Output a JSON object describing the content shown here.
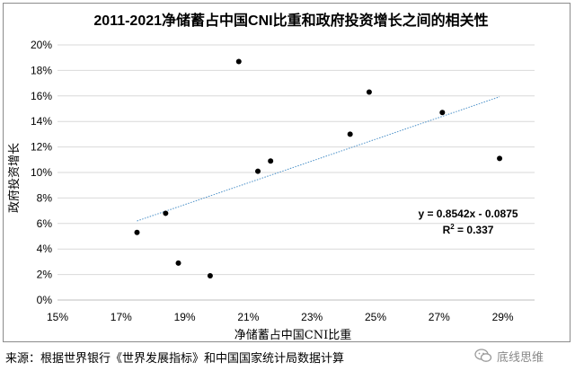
{
  "chart_data": {
    "type": "scatter",
    "title": "2011-2021净储蓄占中国CNI比重和政府投资增长之间的相关性",
    "xlabel": "净储蓄占中国CNI比重",
    "ylabel": "政府投资增长",
    "xlim": [
      0.15,
      0.3
    ],
    "ylim": [
      0,
      0.2
    ],
    "x_ticks": [
      "15%",
      "17%",
      "19%",
      "21%",
      "23%",
      "25%",
      "27%",
      "29%"
    ],
    "y_ticks": [
      "0%",
      "2%",
      "4%",
      "6%",
      "8%",
      "10%",
      "12%",
      "14%",
      "16%",
      "18%",
      "20%"
    ],
    "points": [
      {
        "x": 0.175,
        "y": 0.053
      },
      {
        "x": 0.184,
        "y": 0.068
      },
      {
        "x": 0.188,
        "y": 0.029
      },
      {
        "x": 0.198,
        "y": 0.019
      },
      {
        "x": 0.207,
        "y": 0.187
      },
      {
        "x": 0.213,
        "y": 0.101
      },
      {
        "x": 0.217,
        "y": 0.109
      },
      {
        "x": 0.242,
        "y": 0.13
      },
      {
        "x": 0.248,
        "y": 0.163
      },
      {
        "x": 0.271,
        "y": 0.147
      },
      {
        "x": 0.289,
        "y": 0.111
      }
    ],
    "trendline": {
      "slope": 0.8542,
      "intercept": -0.0875,
      "x_range": [
        0.175,
        0.289
      ]
    },
    "equation": "y = 0.8542x - 0.0875",
    "r2_label": "R",
    "r2_value": "= 0.337",
    "grid": "horizontal",
    "legend": "none",
    "point_color": "#000000",
    "trend_color": "#4a90c8",
    "grid_color": "#d9d9d9"
  },
  "footer": {
    "source": "来源：根据世界银行《世界发展指标》和中国国家统计局数据计算",
    "watermark_icon": "wechat-icon",
    "watermark": "底线思维"
  }
}
